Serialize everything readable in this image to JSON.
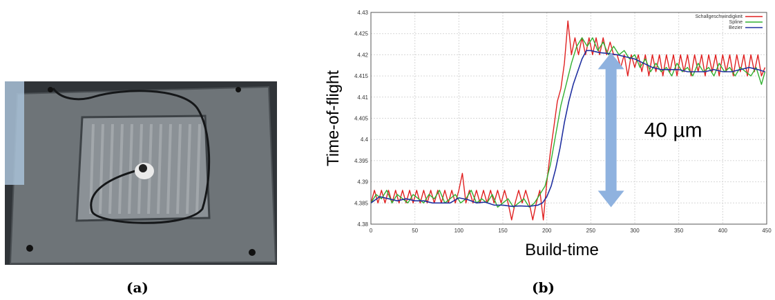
{
  "captions": {
    "a": "(a)",
    "b": "(b)"
  },
  "chart_data": {
    "type": "line",
    "title": "",
    "xlabel": "Build-time",
    "ylabel": "Time-of-flight",
    "xlim": [
      0,
      450
    ],
    "ylim": [
      4.38,
      4.43
    ],
    "xticks": [
      "0",
      "50",
      "100",
      "150",
      "200",
      "250",
      "300",
      "350",
      "400",
      "450"
    ],
    "yticks": [
      "4.38",
      "4.385",
      "4.39",
      "4.395",
      "4.4",
      "4.405",
      "4.41",
      "4.415",
      "4.42",
      "4.425",
      "4.43"
    ],
    "grid": true,
    "legend_position": "top-right",
    "annotation": "40 µm",
    "annotation_range": [
      4.384,
      4.4205
    ],
    "annotation_x": 273,
    "colors": {
      "arrow": "#8fb2df"
    },
    "series": [
      {
        "name": "Schallgeschwindigkeit",
        "color": "#e02020",
        "x": [
          0,
          4,
          8,
          12,
          16,
          20,
          24,
          28,
          32,
          36,
          40,
          44,
          48,
          52,
          56,
          60,
          64,
          68,
          72,
          76,
          80,
          84,
          88,
          92,
          96,
          100,
          104,
          108,
          112,
          116,
          120,
          124,
          128,
          132,
          136,
          140,
          144,
          148,
          152,
          156,
          160,
          164,
          168,
          172,
          176,
          180,
          184,
          188,
          192,
          196,
          200,
          204,
          208,
          212,
          216,
          220,
          224,
          228,
          232,
          236,
          240,
          244,
          248,
          252,
          256,
          260,
          264,
          268,
          272,
          276,
          280,
          284,
          288,
          292,
          296,
          300,
          304,
          308,
          312,
          316,
          320,
          324,
          328,
          332,
          336,
          340,
          344,
          348,
          352,
          356,
          360,
          364,
          368,
          372,
          376,
          380,
          384,
          388,
          392,
          396,
          400,
          404,
          408,
          412,
          416,
          420,
          424,
          428,
          432,
          436,
          440,
          444,
          448
        ],
        "y": [
          4.385,
          4.388,
          4.385,
          4.388,
          4.385,
          4.388,
          4.385,
          4.388,
          4.385,
          4.388,
          4.385,
          4.388,
          4.385,
          4.388,
          4.385,
          4.388,
          4.385,
          4.388,
          4.385,
          4.388,
          4.385,
          4.388,
          4.385,
          4.388,
          4.385,
          4.388,
          4.392,
          4.385,
          4.388,
          4.385,
          4.388,
          4.385,
          4.388,
          4.385,
          4.388,
          4.385,
          4.388,
          4.385,
          4.388,
          4.385,
          4.381,
          4.385,
          4.388,
          4.385,
          4.388,
          4.385,
          4.381,
          4.385,
          4.388,
          4.381,
          4.39,
          4.397,
          4.403,
          4.409,
          4.412,
          4.418,
          4.428,
          4.42,
          4.424,
          4.42,
          4.424,
          4.42,
          4.424,
          4.42,
          4.424,
          4.42,
          4.424,
          4.42,
          4.423,
          4.42,
          4.42,
          4.417,
          4.42,
          4.415,
          4.42,
          4.417,
          4.42,
          4.416,
          4.42,
          4.415,
          4.42,
          4.416,
          4.42,
          4.415,
          4.42,
          4.416,
          4.42,
          4.415,
          4.42,
          4.416,
          4.42,
          4.415,
          4.42,
          4.416,
          4.42,
          4.415,
          4.42,
          4.416,
          4.42,
          4.415,
          4.42,
          4.416,
          4.42,
          4.415,
          4.42,
          4.416,
          4.42,
          4.415,
          4.42,
          4.416,
          4.42,
          4.415,
          4.417
        ]
      },
      {
        "name": "Spline",
        "color": "#30b030",
        "x": [
          0,
          6,
          12,
          18,
          24,
          30,
          36,
          42,
          48,
          54,
          60,
          66,
          72,
          78,
          84,
          90,
          96,
          102,
          108,
          114,
          120,
          126,
          132,
          138,
          144,
          150,
          156,
          162,
          168,
          174,
          180,
          186,
          192,
          198,
          204,
          210,
          216,
          222,
          228,
          234,
          240,
          246,
          252,
          258,
          264,
          270,
          276,
          282,
          288,
          294,
          300,
          306,
          312,
          318,
          324,
          330,
          336,
          342,
          348,
          354,
          360,
          366,
          372,
          378,
          384,
          390,
          396,
          402,
          408,
          414,
          420,
          426,
          432,
          438,
          444,
          448
        ],
        "y": [
          4.385,
          4.387,
          4.386,
          4.388,
          4.385,
          4.387,
          4.386,
          4.385,
          4.387,
          4.386,
          4.385,
          4.387,
          4.386,
          4.388,
          4.385,
          4.386,
          4.387,
          4.385,
          4.386,
          4.388,
          4.385,
          4.386,
          4.385,
          4.387,
          4.384,
          4.385,
          4.386,
          4.384,
          4.385,
          4.386,
          4.384,
          4.385,
          4.387,
          4.389,
          4.394,
          4.401,
          4.408,
          4.413,
          4.418,
          4.422,
          4.424,
          4.422,
          4.424,
          4.421,
          4.423,
          4.42,
          4.422,
          4.42,
          4.421,
          4.419,
          4.42,
          4.417,
          4.419,
          4.416,
          4.418,
          4.416,
          4.417,
          4.415,
          4.418,
          4.416,
          4.417,
          4.415,
          4.418,
          4.416,
          4.417,
          4.415,
          4.418,
          4.416,
          4.417,
          4.415,
          4.417,
          4.416,
          4.415,
          4.417,
          4.413,
          4.416
        ]
      },
      {
        "name": "Bezier",
        "color": "#2030a0",
        "x": [
          0,
          10,
          20,
          30,
          40,
          50,
          60,
          70,
          80,
          90,
          100,
          110,
          120,
          130,
          140,
          150,
          160,
          170,
          180,
          190,
          195,
          200,
          205,
          210,
          215,
          220,
          225,
          230,
          235,
          240,
          245,
          250,
          260,
          270,
          280,
          290,
          300,
          310,
          320,
          330,
          340,
          350,
          360,
          370,
          380,
          390,
          400,
          410,
          420,
          430,
          440,
          448
        ],
        "y": [
          4.385,
          4.3865,
          4.386,
          4.3855,
          4.386,
          4.3855,
          4.3855,
          4.385,
          4.385,
          4.385,
          4.3862,
          4.3858,
          4.385,
          4.3852,
          4.3845,
          4.3845,
          4.3842,
          4.3843,
          4.3842,
          4.3845,
          4.385,
          4.3865,
          4.389,
          4.393,
          4.398,
          4.404,
          4.409,
          4.413,
          4.416,
          4.419,
          4.421,
          4.421,
          4.4205,
          4.4203,
          4.42,
          4.4195,
          4.419,
          4.418,
          4.417,
          4.4165,
          4.4165,
          4.4165,
          4.416,
          4.416,
          4.416,
          4.4165,
          4.416,
          4.416,
          4.4165,
          4.417,
          4.4165,
          4.416
        ]
      }
    ]
  }
}
